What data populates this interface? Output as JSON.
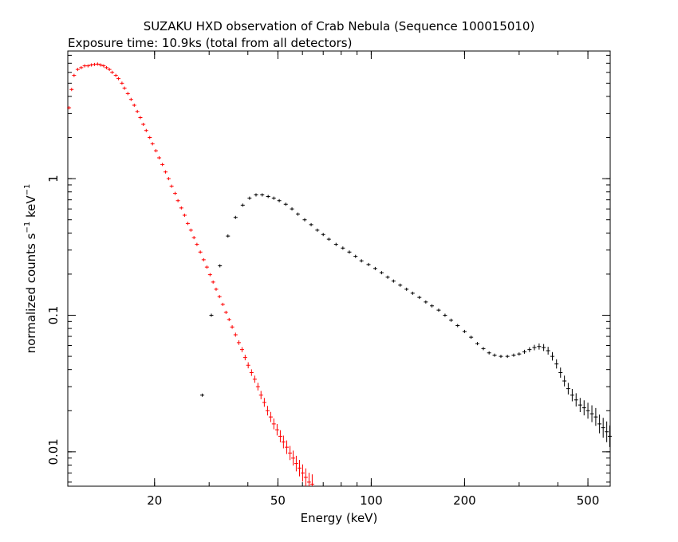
{
  "header": {
    "title": "SUZAKU HXD observation of Crab Nebula (Sequence 100015010)",
    "subtitle": "Exposure time: 10.9ks (total from all detectors)"
  },
  "chart_data": {
    "type": "scatter",
    "title": "SUZAKU HXD observation of Crab Nebula (Sequence 100015010)",
    "subtitle": "Exposure time: 10.9ks (total from all detectors)",
    "xlabel": "Energy (keV)",
    "ylabel": "normalized counts s⁻¹ keV⁻¹",
    "ylabel_main": "normalized counts s",
    "ylabel_sup1": "−1",
    "ylabel_mid": " keV",
    "ylabel_sup2": "−1",
    "xscale": "log",
    "yscale": "log",
    "xlim": [
      10.5,
      590
    ],
    "ylim": [
      0.0056,
      8.6
    ],
    "x_ticks": [
      {
        "value": 20,
        "label": "20"
      },
      {
        "value": 50,
        "label": "50"
      },
      {
        "value": 100,
        "label": "100"
      },
      {
        "value": 200,
        "label": "200"
      },
      {
        "value": 500,
        "label": "500"
      }
    ],
    "y_ticks": [
      {
        "value": 0.01,
        "label": "0.01"
      },
      {
        "value": 0.1,
        "label": "0.1"
      },
      {
        "value": 1,
        "label": "1"
      }
    ],
    "grid": false,
    "colors": {
      "series_pin": "#ff0000",
      "series_gso": "#000000",
      "axes": "#000000"
    },
    "series": [
      {
        "color": "#ff0000",
        "points": [
          [
            10.6,
            3.3
          ],
          [
            10.8,
            4.5
          ],
          [
            11.0,
            5.7
          ],
          [
            11.3,
            6.3
          ],
          [
            11.6,
            6.5
          ],
          [
            11.9,
            6.7
          ],
          [
            12.2,
            6.7
          ],
          [
            12.5,
            6.8
          ],
          [
            12.8,
            6.85
          ],
          [
            13.1,
            6.9
          ],
          [
            13.4,
            6.8
          ],
          [
            13.7,
            6.7
          ],
          [
            14.0,
            6.5
          ],
          [
            14.3,
            6.3
          ],
          [
            14.6,
            6.0
          ],
          [
            15.0,
            5.7
          ],
          [
            15.3,
            5.4
          ],
          [
            15.7,
            5.0
          ],
          [
            16.0,
            4.6
          ],
          [
            16.4,
            4.2
          ],
          [
            16.8,
            3.8
          ],
          [
            17.2,
            3.45
          ],
          [
            17.6,
            3.1
          ],
          [
            18.0,
            2.8
          ],
          [
            18.4,
            2.5
          ],
          [
            18.8,
            2.25
          ],
          [
            19.3,
            2.0
          ],
          [
            19.7,
            1.8
          ],
          [
            20.2,
            1.6
          ],
          [
            20.7,
            1.42
          ],
          [
            21.2,
            1.27
          ],
          [
            21.7,
            1.12
          ],
          [
            22.2,
            1.0
          ],
          [
            22.7,
            0.88
          ],
          [
            23.3,
            0.78
          ],
          [
            23.8,
            0.69
          ],
          [
            24.4,
            0.61
          ],
          [
            25.0,
            0.54
          ],
          [
            25.6,
            0.47
          ],
          [
            26.2,
            0.42
          ],
          [
            26.8,
            0.37
          ],
          [
            27.4,
            0.33
          ],
          [
            28.1,
            0.29
          ],
          [
            28.8,
            0.255
          ],
          [
            29.5,
            0.225
          ],
          [
            30.2,
            0.198
          ],
          [
            30.9,
            0.175
          ],
          [
            31.6,
            0.155
          ],
          [
            32.4,
            0.137
          ],
          [
            33.2,
            0.12
          ],
          [
            34.0,
            0.105
          ],
          [
            34.8,
            0.093
          ],
          [
            35.6,
            0.082
          ],
          [
            36.5,
            0.072
          ],
          [
            37.4,
            0.063
          ],
          [
            38.3,
            0.056
          ],
          [
            39.2,
            0.049
          ],
          [
            40.1,
            0.043
          ],
          [
            41.1,
            0.038
          ],
          [
            42.1,
            0.034
          ],
          [
            43.1,
            0.03
          ],
          [
            44.1,
            0.026
          ],
          [
            45.2,
            0.023
          ],
          [
            46.3,
            0.02
          ],
          [
            47.4,
            0.018
          ],
          [
            48.5,
            0.016
          ],
          [
            49.7,
            0.0145
          ],
          [
            50.9,
            0.013
          ],
          [
            52.1,
            0.0118
          ],
          [
            53.4,
            0.0108
          ],
          [
            54.7,
            0.0098
          ],
          [
            56.0,
            0.009
          ],
          [
            57.3,
            0.0082
          ],
          [
            58.7,
            0.0076
          ],
          [
            60.1,
            0.007
          ],
          [
            61.5,
            0.0065
          ],
          [
            63.0,
            0.006
          ],
          [
            64.5,
            0.0058
          ]
        ]
      },
      {
        "color": "#000000",
        "points": [
          [
            28.5,
            0.026
          ],
          [
            30.5,
            0.1
          ],
          [
            32.5,
            0.23
          ],
          [
            34.5,
            0.38
          ],
          [
            36.5,
            0.52
          ],
          [
            38.5,
            0.64
          ],
          [
            40.5,
            0.72
          ],
          [
            42.5,
            0.76
          ],
          [
            44.5,
            0.76
          ],
          [
            46.5,
            0.74
          ],
          [
            48.5,
            0.72
          ],
          [
            50.5,
            0.69
          ],
          [
            53,
            0.65
          ],
          [
            55.5,
            0.6
          ],
          [
            58,
            0.55
          ],
          [
            61,
            0.5
          ],
          [
            64,
            0.46
          ],
          [
            67,
            0.42
          ],
          [
            70,
            0.39
          ],
          [
            73,
            0.36
          ],
          [
            77,
            0.33
          ],
          [
            81,
            0.31
          ],
          [
            85,
            0.29
          ],
          [
            89,
            0.27
          ],
          [
            93,
            0.25
          ],
          [
            98,
            0.235
          ],
          [
            103,
            0.22
          ],
          [
            108,
            0.205
          ],
          [
            113,
            0.19
          ],
          [
            118,
            0.178
          ],
          [
            124,
            0.166
          ],
          [
            130,
            0.155
          ],
          [
            136,
            0.145
          ],
          [
            143,
            0.135
          ],
          [
            150,
            0.125
          ],
          [
            157,
            0.117
          ],
          [
            165,
            0.109
          ],
          [
            173,
            0.1
          ],
          [
            181,
            0.092
          ],
          [
            190,
            0.084
          ],
          [
            200,
            0.076
          ],
          [
            210,
            0.069
          ],
          [
            220,
            0.062
          ],
          [
            230,
            0.057
          ],
          [
            240,
            0.053
          ],
          [
            250,
            0.051
          ],
          [
            262,
            0.05
          ],
          [
            275,
            0.05
          ],
          [
            288,
            0.051
          ],
          [
            300,
            0.052
          ],
          [
            312,
            0.054
          ],
          [
            324,
            0.056
          ],
          [
            336,
            0.058
          ],
          [
            348,
            0.059
          ],
          [
            360,
            0.058
          ],
          [
            372,
            0.055
          ],
          [
            384,
            0.05
          ],
          [
            396,
            0.044
          ],
          [
            408,
            0.038
          ],
          [
            420,
            0.033
          ],
          [
            432,
            0.029
          ],
          [
            445,
            0.026
          ],
          [
            458,
            0.024
          ],
          [
            472,
            0.022
          ],
          [
            486,
            0.021
          ],
          [
            500,
            0.02
          ],
          [
            515,
            0.019
          ],
          [
            530,
            0.018
          ],
          [
            545,
            0.016
          ],
          [
            560,
            0.015
          ],
          [
            575,
            0.014
          ],
          [
            588,
            0.013
          ]
        ]
      }
    ]
  }
}
